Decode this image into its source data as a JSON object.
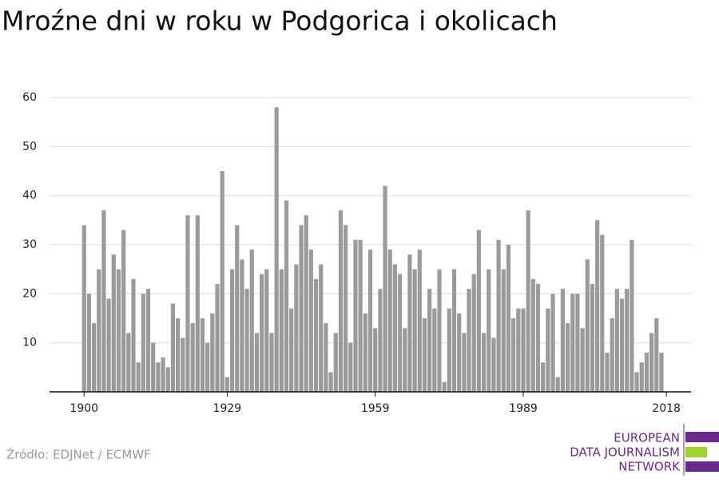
{
  "chart_data": {
    "type": "bar",
    "title": "Mroźne dni w roku w Podgorica i okolicach",
    "source": "Źródło: EDJNet / ECMWF",
    "logo": [
      "EUROPEAN",
      "DATA JOURNALISM",
      "NETWORK"
    ],
    "x": [
      1900,
      1901,
      1902,
      1903,
      1904,
      1905,
      1906,
      1907,
      1908,
      1909,
      1910,
      1911,
      1912,
      1913,
      1914,
      1915,
      1916,
      1917,
      1918,
      1919,
      1920,
      1921,
      1922,
      1923,
      1924,
      1925,
      1926,
      1927,
      1928,
      1929,
      1930,
      1931,
      1932,
      1933,
      1934,
      1935,
      1936,
      1937,
      1938,
      1939,
      1940,
      1941,
      1942,
      1943,
      1944,
      1945,
      1946,
      1947,
      1948,
      1949,
      1950,
      1951,
      1952,
      1953,
      1954,
      1955,
      1956,
      1957,
      1958,
      1959,
      1960,
      1961,
      1962,
      1963,
      1964,
      1965,
      1966,
      1967,
      1968,
      1969,
      1970,
      1971,
      1972,
      1973,
      1974,
      1975,
      1976,
      1977,
      1978,
      1979,
      1980,
      1981,
      1982,
      1983,
      1984,
      1985,
      1986,
      1987,
      1988,
      1989,
      1990,
      1991,
      1992,
      1993,
      1994,
      1995,
      1996,
      1997,
      1998,
      1999,
      2000,
      2001,
      2002,
      2003,
      2004,
      2005,
      2006,
      2007,
      2008,
      2009,
      2010,
      2011,
      2012,
      2013,
      2014,
      2015,
      2016,
      2017
    ],
    "values": [
      34,
      20,
      14,
      25,
      37,
      19,
      28,
      25,
      33,
      12,
      23,
      6,
      20,
      21,
      10,
      6,
      7,
      5,
      18,
      15,
      11,
      36,
      14,
      36,
      15,
      10,
      16,
      22,
      45,
      3,
      25,
      34,
      27,
      21,
      29,
      12,
      24,
      25,
      12,
      58,
      25,
      39,
      17,
      26,
      34,
      36,
      29,
      23,
      26,
      14,
      4,
      12,
      37,
      34,
      10,
      31,
      31,
      16,
      29,
      13,
      21,
      42,
      29,
      26,
      24,
      13,
      28,
      25,
      29,
      15,
      21,
      17,
      25,
      2,
      17,
      25,
      16,
      12,
      21,
      24,
      33,
      12,
      25,
      11,
      31,
      25,
      30,
      15,
      17,
      17,
      37,
      23,
      22,
      6,
      17,
      20,
      3,
      21,
      14,
      20,
      20,
      13,
      27,
      22,
      35,
      32,
      8,
      15,
      21,
      19,
      21,
      31,
      4,
      6,
      8,
      12,
      15,
      8
    ],
    "color": "#9b9b9b",
    "xlim": [
      1893,
      2023
    ],
    "xticks": [
      1900,
      1929,
      1959,
      1989,
      2018
    ],
    "ylim": [
      0,
      60
    ],
    "yticks": [
      10,
      20,
      30,
      40,
      50,
      60
    ],
    "grid": true
  }
}
